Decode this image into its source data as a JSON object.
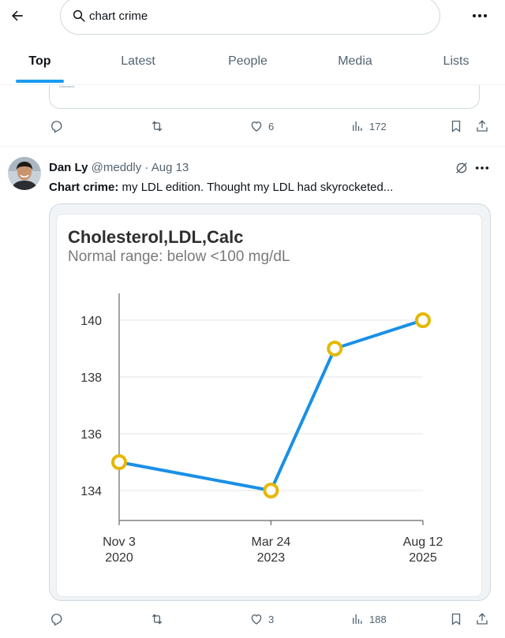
{
  "search": {
    "value": "chart crime"
  },
  "tabs": [
    {
      "label": "Top",
      "active": true
    },
    {
      "label": "Latest"
    },
    {
      "label": "People"
    },
    {
      "label": "Media"
    },
    {
      "label": "Lists"
    }
  ],
  "prev_tweet": {
    "caption": "Spring Model of LDL Variability and Cholesterol Response to Statins Treatment (Standard)",
    "stats": {
      "likes": "6",
      "views": "172"
    }
  },
  "tweet": {
    "author_name": "Dan Ly",
    "handle": "@meddly",
    "separator": "·",
    "date": "Aug 13",
    "text_bold": "Chart crime:",
    "text_rest": " my LDL edition. Thought my LDL had skyrocketed...",
    "stats": {
      "likes": "3",
      "views": "188"
    }
  },
  "chart_data": {
    "type": "line",
    "title": "Cholesterol,LDL,Calc",
    "subtitle": "Normal range: below <100 mg/dL",
    "x_dates": [
      "2020-11-03",
      "2023-03-24",
      "2024-03-24",
      "2025-08-12"
    ],
    "x_ticks": [
      {
        "line1": "Nov 3",
        "line2": "2020",
        "date": "2020-11-03"
      },
      {
        "line1": "Mar 24",
        "line2": "2023",
        "date": "2023-03-24"
      },
      {
        "line1": "Aug 12",
        "line2": "2025",
        "date": "2025-08-12"
      }
    ],
    "values": [
      135,
      134,
      139,
      140
    ],
    "yticks": [
      134,
      136,
      138,
      140
    ],
    "ylim": [
      133,
      141
    ],
    "line_color": "#1a8fe6",
    "marker_color": "#e5b800",
    "grid": true
  },
  "colors": {
    "accent": "#1d9bf0",
    "text_secondary": "#536471"
  }
}
